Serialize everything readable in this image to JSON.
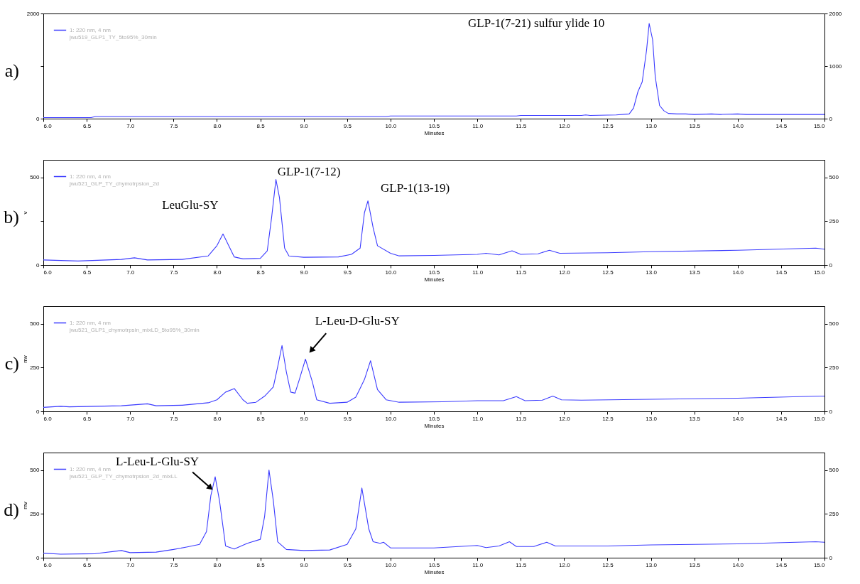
{
  "chart_data": [
    {
      "type": "line",
      "xlabel": "Minutes",
      "legend": "top left",
      "annotations": [
        "a)",
        "GLP-1(7-21) sulfur ylide 10"
      ],
      "xlim": [
        6,
        15
      ],
      "xticks": [
        {
          "value": 6,
          "label": "6.0"
        },
        6.5,
        {
          "value": 7,
          "label": "7.0"
        },
        7.5,
        {
          "value": 8,
          "label": "8.0"
        },
        8.5,
        {
          "value": 9,
          "label": "9.0"
        },
        9.5,
        {
          "value": 10,
          "label": "10.0"
        },
        10.5,
        {
          "value": 11,
          "label": "11.0"
        },
        11.5,
        {
          "value": 12,
          "label": "12.0"
        },
        12.5,
        {
          "value": 13,
          "label": "13.0"
        },
        13.5,
        {
          "value": 14,
          "label": "14.0"
        },
        14.5,
        {
          "value": 15,
          "label": "15.0"
        }
      ],
      "ylim": [
        0,
        2000
      ],
      "yticks": [
        0,
        {
          "value": 1000,
          "label": null
        },
        2000
      ],
      "y2lim": [
        0,
        2000
      ],
      "y2ticks": [
        0,
        1000,
        2000
      ],
      "series": [
        {
          "name": "1: 220 nm, 4 nm\njwu519_GLP1_TY_5to95%_30min",
          "color": "#3b3bff",
          "x": [
            6.0,
            6.55,
            6.6,
            8.35,
            8.4,
            9.95,
            10.0,
            11.45,
            11.5,
            12.2,
            12.25,
            12.3,
            12.6,
            12.75,
            12.8,
            12.85,
            12.9,
            12.95,
            12.98,
            13.02,
            13.05,
            13.1,
            13.15,
            13.2,
            13.3,
            13.4,
            13.5,
            13.7,
            13.8,
            14.0,
            14.1,
            14.25,
            15.0
          ],
          "values": [
            20,
            20,
            40,
            40,
            40,
            40,
            50,
            50,
            60,
            60,
            70,
            60,
            70,
            90,
            200,
            510,
            700,
            1300,
            1810,
            1500,
            800,
            250,
            150,
            100,
            90,
            90,
            80,
            90,
            80,
            90,
            80,
            80,
            80
          ]
        }
      ]
    },
    {
      "type": "line",
      "xlabel": "Minutes",
      "ylabel": "v",
      "legend": "top left",
      "annotations": [
        "b)",
        "LeuGlu-SY",
        "GLP-1(7-12)",
        "GLP-1(13-19)"
      ],
      "xlim": [
        6,
        15
      ],
      "xticks": [
        {
          "value": 6,
          "label": "6.0"
        },
        6.5,
        {
          "value": 7,
          "label": "7.0"
        },
        7.5,
        {
          "value": 8,
          "label": "8.0"
        },
        8.5,
        {
          "value": 9,
          "label": "9.0"
        },
        9.5,
        {
          "value": 10,
          "label": "10.0"
        },
        10.5,
        {
          "value": 11,
          "label": "11.0"
        },
        11.5,
        {
          "value": 12,
          "label": "12.0"
        },
        12.5,
        {
          "value": 13,
          "label": "13.0"
        },
        13.5,
        {
          "value": 14,
          "label": "14.0"
        },
        14.5,
        {
          "value": 15,
          "label": "15.0"
        }
      ],
      "ylim": [
        0,
        600
      ],
      "yticks": [
        0,
        {
          "value": 250,
          "label": null
        },
        500
      ],
      "y2lim": [
        0,
        600
      ],
      "y2ticks": [
        0,
        250,
        500
      ],
      "series": [
        {
          "name": "1: 220 nm, 4 nm\njwu521_GLP_TY_chymotrpsion_2d",
          "color": "#3b3bff",
          "x": [
            6.0,
            6.4,
            6.9,
            7.05,
            7.2,
            7.6,
            7.9,
            8.0,
            8.07,
            8.15,
            8.2,
            8.3,
            8.5,
            8.58,
            8.63,
            8.68,
            8.72,
            8.78,
            8.83,
            9.0,
            9.4,
            9.55,
            9.65,
            9.7,
            9.74,
            9.8,
            9.85,
            10.0,
            10.1,
            10.5,
            11.0,
            11.1,
            11.25,
            11.4,
            11.5,
            11.7,
            11.83,
            11.95,
            12.5,
            13.0,
            14.0,
            14.9,
            15.0
          ],
          "values": [
            29,
            23,
            32,
            41,
            29,
            32,
            52,
            110,
            177,
            96,
            46,
            35,
            38,
            81,
            270,
            488,
            387,
            96,
            52,
            44,
            46,
            61,
            96,
            299,
            366,
            212,
            110,
            67,
            52,
            55,
            61,
            67,
            58,
            81,
            61,
            64,
            84,
            67,
            70,
            76,
            84,
            96,
            90
          ]
        }
      ]
    },
    {
      "type": "line",
      "xlabel": "Minutes",
      "ylabel": "mv",
      "legend": "top left",
      "annotations": [
        "c)",
        "L-Leu-D-Glu-SY"
      ],
      "xlim": [
        6,
        15
      ],
      "xticks": [
        {
          "value": 6,
          "label": "6.0"
        },
        6.5,
        {
          "value": 7,
          "label": "7.0"
        },
        7.5,
        {
          "value": 8,
          "label": "8.0"
        },
        8.5,
        {
          "value": 9,
          "label": "9.0"
        },
        9.5,
        {
          "value": 10,
          "label": "10.0"
        },
        10.5,
        {
          "value": 11,
          "label": "11.0"
        },
        11.5,
        {
          "value": 12,
          "label": "12.0"
        },
        12.5,
        {
          "value": 13,
          "label": "13.0"
        },
        13.5,
        {
          "value": 14,
          "label": "14.0"
        },
        14.5,
        {
          "value": 15,
          "label": "15.0"
        }
      ],
      "ylim": [
        0,
        600
      ],
      "yticks": [
        0,
        250,
        500
      ],
      "y2lim": [
        0,
        600
      ],
      "y2ticks": [
        0,
        250,
        500
      ],
      "series": [
        {
          "name": "1: 220 nm, 4 nm\njwu521_GLP1_chymotrpsin_mixLD_5to95%_30min",
          "color": "#3b3bff",
          "x": [
            6.0,
            6.2,
            6.3,
            6.9,
            7.2,
            7.3,
            7.6,
            7.9,
            8.0,
            8.1,
            8.2,
            8.3,
            8.35,
            8.45,
            8.55,
            8.65,
            8.7,
            8.75,
            8.8,
            8.85,
            8.9,
            8.95,
            9.02,
            9.1,
            9.15,
            9.3,
            9.5,
            9.6,
            9.7,
            9.77,
            9.85,
            9.95,
            10.1,
            10.6,
            11.0,
            11.3,
            11.45,
            11.55,
            11.75,
            11.87,
            11.97,
            12.2,
            13.0,
            14.0,
            14.95,
            15.0
          ],
          "values": [
            23,
            29,
            26,
            32,
            43,
            32,
            35,
            49,
            66,
            110,
            130,
            66,
            46,
            52,
            87,
            139,
            254,
            376,
            225,
            110,
            104,
            182,
            298,
            168,
            66,
            46,
            52,
            81,
            182,
            289,
            124,
            66,
            52,
            55,
            61,
            61,
            84,
            61,
            64,
            87,
            66,
            64,
            69,
            75,
            87,
            87
          ]
        }
      ]
    },
    {
      "type": "line",
      "xlabel": "Minutes",
      "ylabel": "mv",
      "legend": "top left",
      "annotations": [
        "d)",
        "L-Leu-L-Glu-SY"
      ],
      "xlim": [
        6,
        15
      ],
      "xticks": [
        {
          "value": 6,
          "label": "6.0"
        },
        6.5,
        {
          "value": 7,
          "label": "7.0"
        },
        7.5,
        {
          "value": 8,
          "label": "8.0"
        },
        8.5,
        {
          "value": 9,
          "label": "9.0"
        },
        9.5,
        {
          "value": 10,
          "label": "10.0"
        },
        10.5,
        {
          "value": 11,
          "label": "11.0"
        },
        11.5,
        {
          "value": 12,
          "label": "12.0"
        },
        12.5,
        {
          "value": 13,
          "label": "13.0"
        },
        13.5,
        {
          "value": 14,
          "label": "14.0"
        },
        14.5,
        {
          "value": 15,
          "label": "15.0"
        }
      ],
      "ylim": [
        0,
        600
      ],
      "yticks": [
        0,
        250,
        500
      ],
      "y2lim": [
        0,
        600
      ],
      "y2ticks": [
        0,
        250,
        500
      ],
      "series": [
        {
          "name": "1: 220 nm, 4 nm\njwu521_GLP_TY_chymotrpsion_2d_mixLL",
          "color": "#3b3bff",
          "x": [
            6.0,
            6.2,
            6.6,
            6.9,
            7.0,
            7.3,
            7.5,
            7.65,
            7.8,
            7.88,
            7.93,
            7.98,
            8.03,
            8.1,
            8.2,
            8.35,
            8.5,
            8.55,
            8.6,
            8.65,
            8.7,
            8.8,
            9.0,
            9.3,
            9.5,
            9.6,
            9.67,
            9.75,
            9.8,
            9.88,
            9.92,
            10.0,
            10.5,
            11.0,
            11.1,
            11.25,
            11.37,
            11.45,
            11.65,
            11.8,
            11.9,
            12.5,
            13.0,
            14.0,
            14.9,
            15.0
          ],
          "values": [
            26,
            20,
            23,
            41,
            29,
            32,
            47,
            61,
            76,
            149,
            354,
            462,
            325,
            67,
            50,
            82,
            105,
            237,
            500,
            325,
            91,
            47,
            41,
            44,
            76,
            164,
            398,
            164,
            91,
            82,
            88,
            56,
            56,
            70,
            58,
            67,
            91,
            64,
            64,
            88,
            67,
            67,
            73,
            79,
            91,
            88
          ]
        }
      ]
    }
  ]
}
